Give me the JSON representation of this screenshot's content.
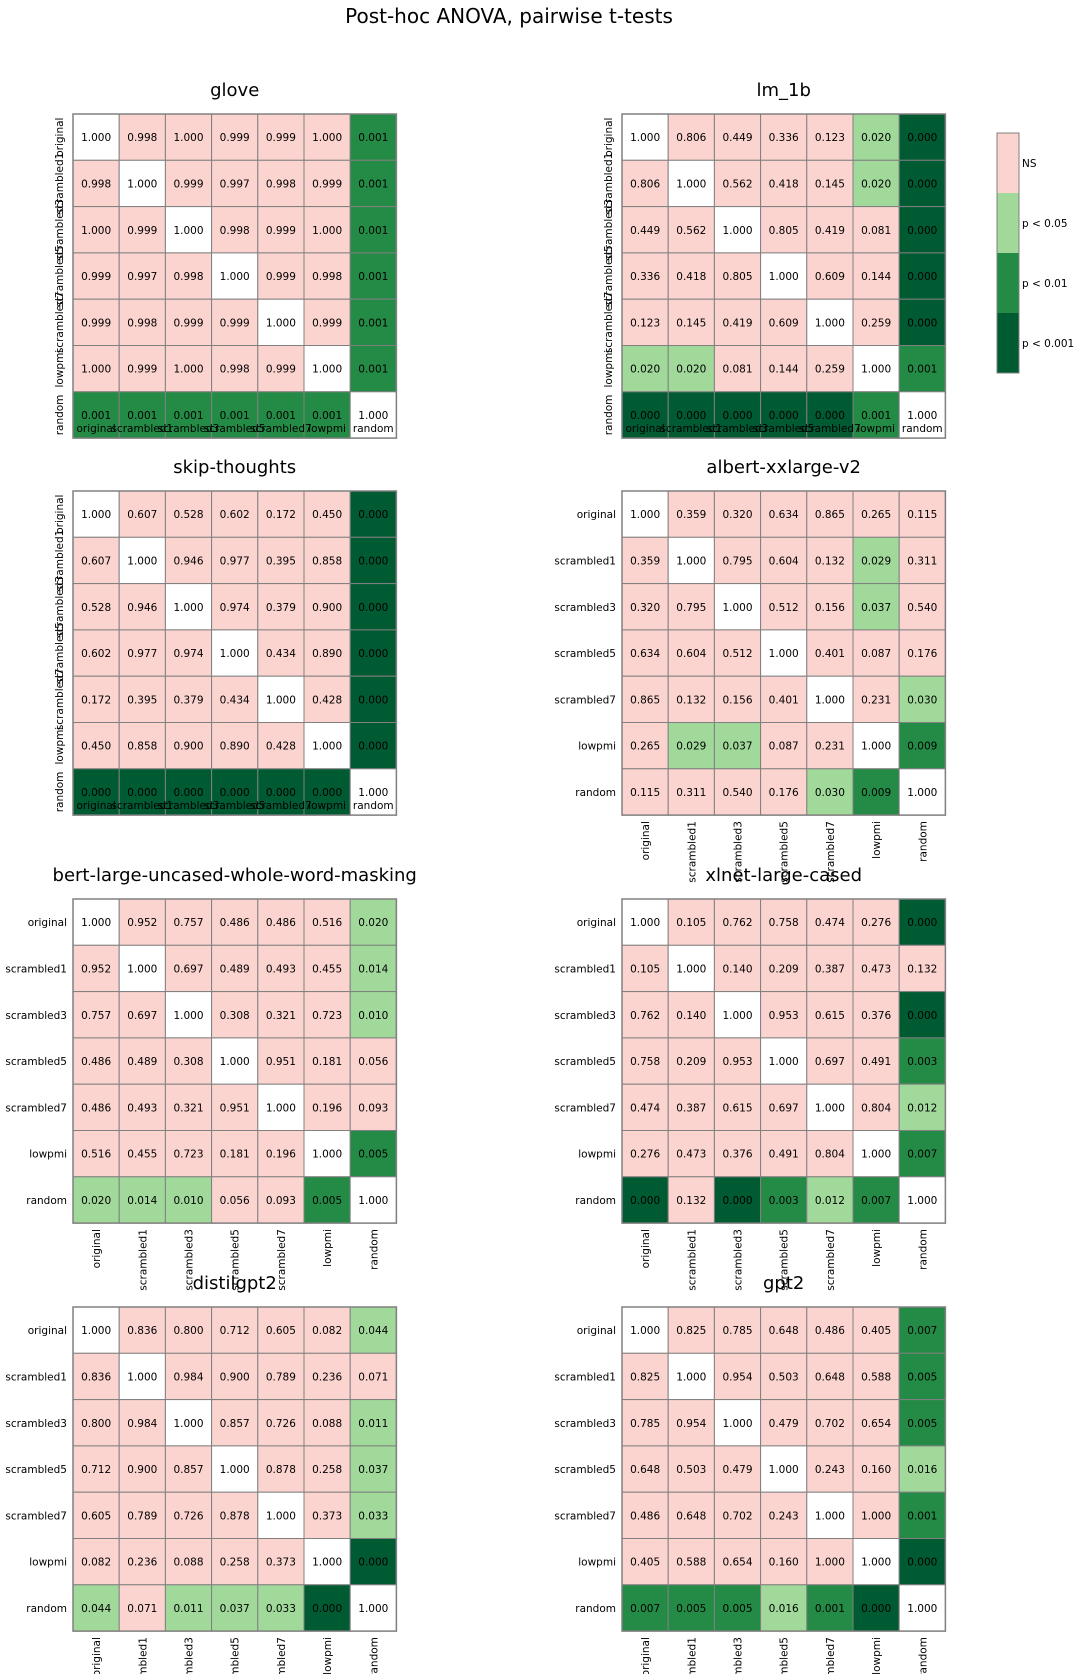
{
  "suptitle": "Post-hoc ANOVA, pairwise t-tests",
  "colors": {
    "diag": "#ffffff",
    "ns": "#fbd4d0",
    "p05": "#a1d99b",
    "p01": "#238b45",
    "p001": "#005a32",
    "grid": "#808080"
  },
  "legend": [
    {
      "label": "NS",
      "color": "#fbd4d0"
    },
    {
      "label": "p < 0.05",
      "color": "#a1d99b"
    },
    {
      "label": "p < 0.01",
      "color": "#238b45"
    },
    {
      "label": "p < 0.001",
      "color": "#005a32"
    }
  ],
  "chart_data": [
    {
      "type": "heatmap",
      "title": "glove",
      "categories": [
        "original",
        "scrambled1",
        "scrambled3",
        "scrambled5",
        "scrambled7",
        "lowpmi",
        "random"
      ],
      "values": [
        [
          "1.000",
          "0.998",
          "1.000",
          "0.999",
          "0.999",
          "1.000",
          "0.001"
        ],
        [
          "0.998",
          "1.000",
          "0.999",
          "0.997",
          "0.998",
          "0.999",
          "0.001"
        ],
        [
          "1.000",
          "0.999",
          "1.000",
          "0.998",
          "0.999",
          "1.000",
          "0.001"
        ],
        [
          "0.999",
          "0.997",
          "0.998",
          "1.000",
          "0.999",
          "0.998",
          "0.001"
        ],
        [
          "0.999",
          "0.998",
          "0.999",
          "0.999",
          "1.000",
          "0.999",
          "0.001"
        ],
        [
          "1.000",
          "0.999",
          "1.000",
          "0.998",
          "0.999",
          "1.000",
          "0.001"
        ],
        [
          "0.001",
          "0.001",
          "0.001",
          "0.001",
          "0.001",
          "0.001",
          "1.000"
        ]
      ]
    },
    {
      "type": "heatmap",
      "title": "lm_1b",
      "categories": [
        "original",
        "scrambled1",
        "scrambled3",
        "scrambled5",
        "scrambled7",
        "lowpmi",
        "random"
      ],
      "values": [
        [
          "1.000",
          "0.806",
          "0.449",
          "0.336",
          "0.123",
          "0.020",
          "0.000"
        ],
        [
          "0.806",
          "1.000",
          "0.562",
          "0.418",
          "0.145",
          "0.020",
          "0.000"
        ],
        [
          "0.449",
          "0.562",
          "1.000",
          "0.805",
          "0.419",
          "0.081",
          "0.000"
        ],
        [
          "0.336",
          "0.418",
          "0.805",
          "1.000",
          "0.609",
          "0.144",
          "0.000"
        ],
        [
          "0.123",
          "0.145",
          "0.419",
          "0.609",
          "1.000",
          "0.259",
          "0.000"
        ],
        [
          "0.020",
          "0.020",
          "0.081",
          "0.144",
          "0.259",
          "1.000",
          "0.001"
        ],
        [
          "0.000",
          "0.000",
          "0.000",
          "0.000",
          "0.000",
          "0.001",
          "1.000"
        ]
      ]
    },
    {
      "type": "heatmap",
      "title": "skip-thoughts",
      "categories": [
        "original",
        "scrambled1",
        "scrambled3",
        "scrambled5",
        "scrambled7",
        "lowpmi",
        "random"
      ],
      "values": [
        [
          "1.000",
          "0.607",
          "0.528",
          "0.602",
          "0.172",
          "0.450",
          "0.000"
        ],
        [
          "0.607",
          "1.000",
          "0.946",
          "0.977",
          "0.395",
          "0.858",
          "0.000"
        ],
        [
          "0.528",
          "0.946",
          "1.000",
          "0.974",
          "0.379",
          "0.900",
          "0.000"
        ],
        [
          "0.602",
          "0.977",
          "0.974",
          "1.000",
          "0.434",
          "0.890",
          "0.000"
        ],
        [
          "0.172",
          "0.395",
          "0.379",
          "0.434",
          "1.000",
          "0.428",
          "0.000"
        ],
        [
          "0.450",
          "0.858",
          "0.900",
          "0.890",
          "0.428",
          "1.000",
          "0.000"
        ],
        [
          "0.000",
          "0.000",
          "0.000",
          "0.000",
          "0.000",
          "0.000",
          "1.000"
        ]
      ]
    },
    {
      "type": "heatmap",
      "title": "albert-xxlarge-v2",
      "categories": [
        "original",
        "scrambled1",
        "scrambled3",
        "scrambled5",
        "scrambled7",
        "lowpmi",
        "random"
      ],
      "values": [
        [
          "1.000",
          "0.359",
          "0.320",
          "0.634",
          "0.865",
          "0.265",
          "0.115"
        ],
        [
          "0.359",
          "1.000",
          "0.795",
          "0.604",
          "0.132",
          "0.029",
          "0.311"
        ],
        [
          "0.320",
          "0.795",
          "1.000",
          "0.512",
          "0.156",
          "0.037",
          "0.540"
        ],
        [
          "0.634",
          "0.604",
          "0.512",
          "1.000",
          "0.401",
          "0.087",
          "0.176"
        ],
        [
          "0.865",
          "0.132",
          "0.156",
          "0.401",
          "1.000",
          "0.231",
          "0.030"
        ],
        [
          "0.265",
          "0.029",
          "0.037",
          "0.087",
          "0.231",
          "1.000",
          "0.009"
        ],
        [
          "0.115",
          "0.311",
          "0.540",
          "0.176",
          "0.030",
          "0.009",
          "1.000"
        ]
      ]
    },
    {
      "type": "heatmap",
      "title": "bert-large-uncased-whole-word-masking",
      "categories": [
        "original",
        "scrambled1",
        "scrambled3",
        "scrambled5",
        "scrambled7",
        "lowpmi",
        "random"
      ],
      "values": [
        [
          "1.000",
          "0.952",
          "0.757",
          "0.486",
          "0.486",
          "0.516",
          "0.020"
        ],
        [
          "0.952",
          "1.000",
          "0.697",
          "0.489",
          "0.493",
          "0.455",
          "0.014"
        ],
        [
          "0.757",
          "0.697",
          "1.000",
          "0.308",
          "0.321",
          "0.723",
          "0.010"
        ],
        [
          "0.486",
          "0.489",
          "0.308",
          "1.000",
          "0.951",
          "0.181",
          "0.056"
        ],
        [
          "0.486",
          "0.493",
          "0.321",
          "0.951",
          "1.000",
          "0.196",
          "0.093"
        ],
        [
          "0.516",
          "0.455",
          "0.723",
          "0.181",
          "0.196",
          "1.000",
          "0.005"
        ],
        [
          "0.020",
          "0.014",
          "0.010",
          "0.056",
          "0.093",
          "0.005",
          "1.000"
        ]
      ]
    },
    {
      "type": "heatmap",
      "title": "xlnet-large-cased",
      "categories": [
        "original",
        "scrambled1",
        "scrambled3",
        "scrambled5",
        "scrambled7",
        "lowpmi",
        "random"
      ],
      "values": [
        [
          "1.000",
          "0.105",
          "0.762",
          "0.758",
          "0.474",
          "0.276",
          "0.000"
        ],
        [
          "0.105",
          "1.000",
          "0.140",
          "0.209",
          "0.387",
          "0.473",
          "0.132"
        ],
        [
          "0.762",
          "0.140",
          "1.000",
          "0.953",
          "0.615",
          "0.376",
          "0.000"
        ],
        [
          "0.758",
          "0.209",
          "0.953",
          "1.000",
          "0.697",
          "0.491",
          "0.003"
        ],
        [
          "0.474",
          "0.387",
          "0.615",
          "0.697",
          "1.000",
          "0.804",
          "0.012"
        ],
        [
          "0.276",
          "0.473",
          "0.376",
          "0.491",
          "0.804",
          "1.000",
          "0.007"
        ],
        [
          "0.000",
          "0.132",
          "0.000",
          "0.003",
          "0.012",
          "0.007",
          "1.000"
        ]
      ]
    },
    {
      "type": "heatmap",
      "title": "distilgpt2",
      "categories": [
        "original",
        "scrambled1",
        "scrambled3",
        "scrambled5",
        "scrambled7",
        "lowpmi",
        "random"
      ],
      "values": [
        [
          "1.000",
          "0.836",
          "0.800",
          "0.712",
          "0.605",
          "0.082",
          "0.044"
        ],
        [
          "0.836",
          "1.000",
          "0.984",
          "0.900",
          "0.789",
          "0.236",
          "0.071"
        ],
        [
          "0.800",
          "0.984",
          "1.000",
          "0.857",
          "0.726",
          "0.088",
          "0.011"
        ],
        [
          "0.712",
          "0.900",
          "0.857",
          "1.000",
          "0.878",
          "0.258",
          "0.037"
        ],
        [
          "0.605",
          "0.789",
          "0.726",
          "0.878",
          "1.000",
          "0.373",
          "0.033"
        ],
        [
          "0.082",
          "0.236",
          "0.088",
          "0.258",
          "0.373",
          "1.000",
          "0.000"
        ],
        [
          "0.044",
          "0.071",
          "0.011",
          "0.037",
          "0.033",
          "0.000",
          "1.000"
        ]
      ]
    },
    {
      "type": "heatmap",
      "title": "gpt2",
      "categories": [
        "original",
        "scrambled1",
        "scrambled3",
        "scrambled5",
        "scrambled7",
        "lowpmi",
        "random"
      ],
      "values": [
        [
          "1.000",
          "0.825",
          "0.785",
          "0.648",
          "0.486",
          "0.405",
          "0.007"
        ],
        [
          "0.825",
          "1.000",
          "0.954",
          "0.503",
          "0.648",
          "0.588",
          "0.005"
        ],
        [
          "0.785",
          "0.954",
          "1.000",
          "0.479",
          "0.702",
          "0.654",
          "0.005"
        ],
        [
          "0.648",
          "0.503",
          "0.479",
          "1.000",
          "0.243",
          "0.160",
          "0.016"
        ],
        [
          "0.486",
          "0.648",
          "0.702",
          "0.243",
          "1.000",
          "1.000",
          "0.001"
        ],
        [
          "0.405",
          "0.588",
          "0.654",
          "0.160",
          "1.000",
          "1.000",
          "0.000"
        ],
        [
          "0.007",
          "0.005",
          "0.005",
          "0.016",
          "0.001",
          "0.000",
          "1.000"
        ]
      ]
    }
  ]
}
